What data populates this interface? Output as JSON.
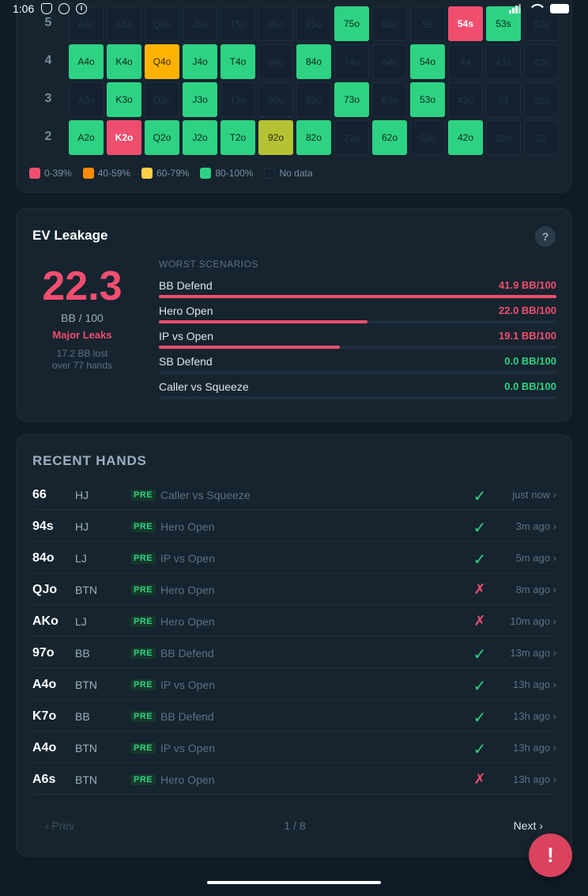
{
  "status_bar": {
    "time": "1:06"
  },
  "heatmap": {
    "rows": [
      {
        "label": "5",
        "top": 8,
        "cells": [
          {
            "t": "A5o",
            "c": "empty"
          },
          {
            "t": "K5o",
            "c": "empty"
          },
          {
            "t": "Q5o",
            "c": "empty"
          },
          {
            "t": "J5o",
            "c": "empty"
          },
          {
            "t": "T5o",
            "c": "empty"
          },
          {
            "t": "95o",
            "c": "empty"
          },
          {
            "t": "85o",
            "c": "empty"
          },
          {
            "t": "75o",
            "c": "green"
          },
          {
            "t": "65o",
            "c": "empty"
          },
          {
            "t": "55",
            "c": "empty"
          },
          {
            "t": "54s",
            "c": "red"
          },
          {
            "t": "53s",
            "c": "green"
          },
          {
            "t": "52s",
            "c": "empty"
          }
        ]
      },
      {
        "label": "4",
        "top": 56,
        "cells": [
          {
            "t": "A4o",
            "c": "green"
          },
          {
            "t": "K4o",
            "c": "green"
          },
          {
            "t": "Q4o",
            "c": "orange"
          },
          {
            "t": "J4o",
            "c": "green"
          },
          {
            "t": "T4o",
            "c": "green"
          },
          {
            "t": "94o",
            "c": "empty"
          },
          {
            "t": "84o",
            "c": "green"
          },
          {
            "t": "74o",
            "c": "empty"
          },
          {
            "t": "64o",
            "c": "empty"
          },
          {
            "t": "54o",
            "c": "green"
          },
          {
            "t": "44",
            "c": "empty"
          },
          {
            "t": "43s",
            "c": "empty"
          },
          {
            "t": "42s",
            "c": "empty"
          }
        ]
      },
      {
        "label": "3",
        "top": 104,
        "cells": [
          {
            "t": "A3o",
            "c": "empty"
          },
          {
            "t": "K3o",
            "c": "green"
          },
          {
            "t": "Q3o",
            "c": "empty"
          },
          {
            "t": "J3o",
            "c": "green"
          },
          {
            "t": "T3o",
            "c": "empty"
          },
          {
            "t": "93o",
            "c": "empty"
          },
          {
            "t": "83o",
            "c": "empty"
          },
          {
            "t": "73o",
            "c": "green"
          },
          {
            "t": "63o",
            "c": "empty"
          },
          {
            "t": "53o",
            "c": "green"
          },
          {
            "t": "43o",
            "c": "empty"
          },
          {
            "t": "33",
            "c": "empty"
          },
          {
            "t": "32s",
            "c": "empty"
          }
        ]
      },
      {
        "label": "2",
        "top": 152,
        "cells": [
          {
            "t": "A2o",
            "c": "green"
          },
          {
            "t": "K2o",
            "c": "red"
          },
          {
            "t": "Q2o",
            "c": "green"
          },
          {
            "t": "J2o",
            "c": "green"
          },
          {
            "t": "T2o",
            "c": "green"
          },
          {
            "t": "92o",
            "c": "olive"
          },
          {
            "t": "82o",
            "c": "green"
          },
          {
            "t": "72o",
            "c": "empty"
          },
          {
            "t": "62o",
            "c": "green"
          },
          {
            "t": "52o",
            "c": "empty"
          },
          {
            "t": "42o",
            "c": "green"
          },
          {
            "t": "32o",
            "c": "empty"
          },
          {
            "t": "22",
            "c": "empty"
          }
        ]
      }
    ],
    "legend": [
      {
        "label": "0-39%",
        "color": "#f04e6f"
      },
      {
        "label": "40-59%",
        "color": "#ff8a00"
      },
      {
        "label": "60-79%",
        "color": "#ffcf4a"
      },
      {
        "label": "80-100%",
        "color": "#2ed283"
      },
      {
        "label": "No data",
        "color": "#142230"
      }
    ]
  },
  "ev_leakage": {
    "title": "EV Leakage",
    "help": "?",
    "value": "22.3",
    "unit": "BB / 100",
    "status": "Major Leaks",
    "lost_line1": "17.2 BB lost",
    "lost_line2": "over 77 hands",
    "worst_label": "WORST SCENARIOS",
    "scenarios": [
      {
        "name": "BB Defend",
        "value": "41.9 BB/100",
        "fill": 1.0,
        "color": "#f04e6f"
      },
      {
        "name": "Hero Open",
        "value": "22.0 BB/100",
        "fill": 0.525,
        "color": "#f04e6f"
      },
      {
        "name": "IP vs Open",
        "value": "19.1 BB/100",
        "fill": 0.456,
        "color": "#f04e6f"
      },
      {
        "name": "SB Defend",
        "value": "0.0 BB/100",
        "fill": 0,
        "color": "#2ed283"
      },
      {
        "name": "Caller vs Squeeze",
        "value": "0.0 BB/100",
        "fill": 0,
        "color": "#2ed283"
      }
    ]
  },
  "recent_hands": {
    "title": "RECENT HANDS",
    "badge": "PRE",
    "hands": [
      {
        "hand": "66",
        "pos": "HJ",
        "scenario": "Caller vs Squeeze",
        "result": "win",
        "time": "just now ›"
      },
      {
        "hand": "94s",
        "pos": "HJ",
        "scenario": "Hero Open",
        "result": "win",
        "time": "3m ago ›"
      },
      {
        "hand": "84o",
        "pos": "LJ",
        "scenario": "IP vs Open",
        "result": "win",
        "time": "5m ago ›"
      },
      {
        "hand": "QJo",
        "pos": "BTN",
        "scenario": "Hero Open",
        "result": "loss",
        "time": "8m ago ›"
      },
      {
        "hand": "AKo",
        "pos": "LJ",
        "scenario": "Hero Open",
        "result": "loss",
        "time": "10m ago ›"
      },
      {
        "hand": "97o",
        "pos": "BB",
        "scenario": "BB Defend",
        "result": "win",
        "time": "13m ago ›"
      },
      {
        "hand": "A4o",
        "pos": "BTN",
        "scenario": "IP vs Open",
        "result": "win",
        "time": "13h ago ›"
      },
      {
        "hand": "K7o",
        "pos": "BB",
        "scenario": "BB Defend",
        "result": "win",
        "time": "13h ago ›"
      },
      {
        "hand": "A4o",
        "pos": "BTN",
        "scenario": "IP vs Open",
        "result": "win",
        "time": "13h ago ›"
      },
      {
        "hand": "A6s",
        "pos": "BTN",
        "scenario": "Hero Open",
        "result": "loss",
        "time": "13h ago ›"
      }
    ],
    "win_icon": "✓",
    "loss_icon": "✗",
    "prev_label": "‹ Prev",
    "page_label": "1 / 8",
    "next_label": "Next ›"
  },
  "fab": {
    "label": "!"
  }
}
